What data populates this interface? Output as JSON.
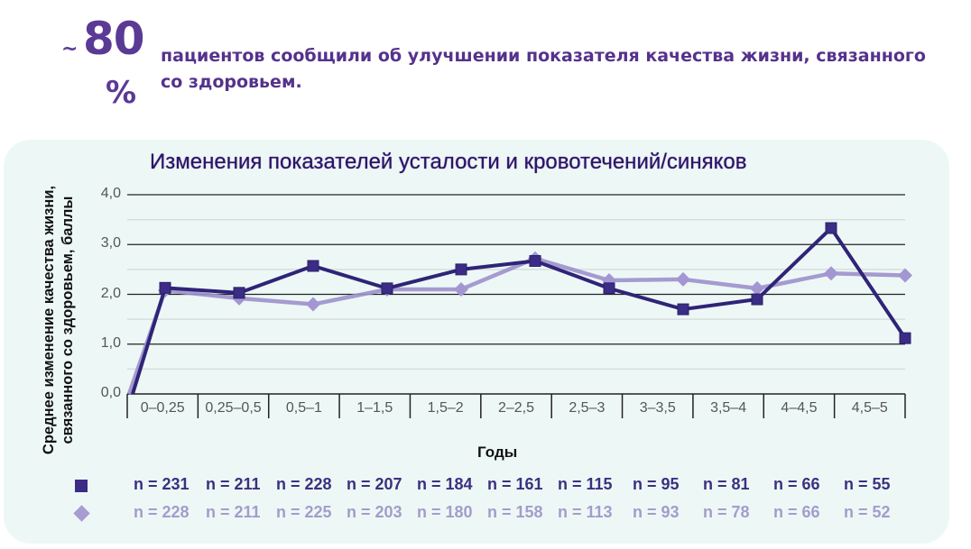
{
  "header": {
    "stat_prefix": "~",
    "stat_value": "80",
    "stat_unit": "%",
    "stat_text": "пациентов сообщили об улучшении показателя качества жизни, связанного со здоровьем."
  },
  "colors": {
    "accent_purple": "#5b3a96",
    "series_dark": "#2f2477",
    "series_light": "#9c90cc",
    "panel_bg": "#edf8f6"
  },
  "chart_data": {
    "type": "line",
    "title": "Изменения показателей усталости и кровотечений/синяков",
    "xlabel": "Годы",
    "ylabel": "Среднее изменение качества жизни, связанного со здоровьем, баллы",
    "ylim": [
      0,
      4
    ],
    "yticks": [
      "0,0",
      "1,0",
      "2,0",
      "3,0",
      "4,0"
    ],
    "grid": true,
    "categories": [
      "0–0,25",
      "0,25–0,5",
      "0,5–1",
      "1–1,5",
      "1,5–2",
      "2–2,5",
      "2,5–3",
      "3–3,5",
      "3,5–4",
      "4–4,5",
      "4,5–5"
    ],
    "series": [
      {
        "name": "series-square",
        "marker": "square",
        "color": "#2f2477",
        "start": 0.0,
        "values": [
          2.13,
          2.03,
          2.57,
          2.12,
          2.5,
          2.67,
          2.12,
          1.7,
          1.9,
          3.33,
          1.12
        ],
        "n": [
          "n = 231",
          "n = 211",
          "n = 228",
          "n = 207",
          "n = 184",
          "n = 161",
          "n = 115",
          "n = 95",
          "n = 81",
          "n = 66",
          "n = 55"
        ]
      },
      {
        "name": "series-diamond",
        "marker": "diamond",
        "color": "#9c90cc",
        "start": 0.0,
        "values": [
          2.08,
          1.92,
          1.8,
          2.1,
          2.1,
          2.72,
          2.28,
          2.3,
          2.12,
          2.42,
          2.38
        ],
        "n": [
          "n = 228",
          "n = 211",
          "n = 225",
          "n = 203",
          "n = 180",
          "n = 158",
          "n = 113",
          "n = 93",
          "n = 78",
          "n = 66",
          "n = 52"
        ]
      }
    ]
  }
}
